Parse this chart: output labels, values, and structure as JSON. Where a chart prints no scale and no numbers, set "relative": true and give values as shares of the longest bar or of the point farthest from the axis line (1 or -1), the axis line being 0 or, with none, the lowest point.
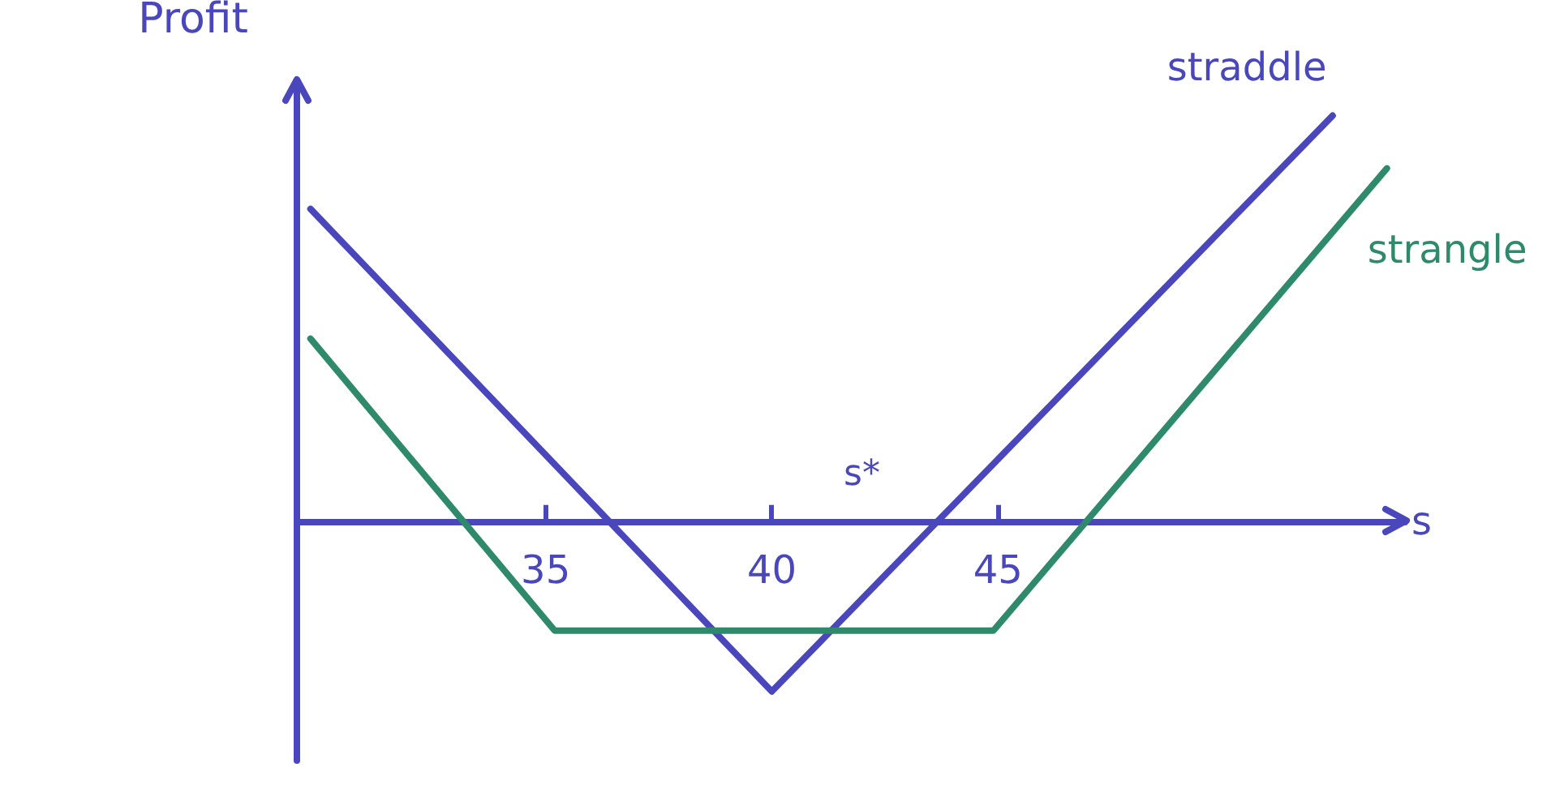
{
  "chart_data": {
    "type": "line",
    "relative": true,
    "xlabel": "s",
    "ylabel": "Profit",
    "xlim": [
      29.5,
      54
    ],
    "xticks": [
      35,
      40,
      45
    ],
    "grid": false,
    "legend": false,
    "marker": "none",
    "line_style": "solid",
    "annotations": [
      "s*"
    ],
    "series": [
      {
        "name": "straddle",
        "color": "#4a47bd",
        "x": [
          29.8,
          40,
          52.4
        ],
        "values": [
          0.77,
          -0.42,
          1
        ]
      },
      {
        "name": "strangle",
        "color": "#2f8a6c",
        "x": [
          29.8,
          35.2,
          44.9,
          53.6
        ],
        "values": [
          0.45,
          -0.27,
          -0.27,
          0.87
        ]
      }
    ]
  }
}
